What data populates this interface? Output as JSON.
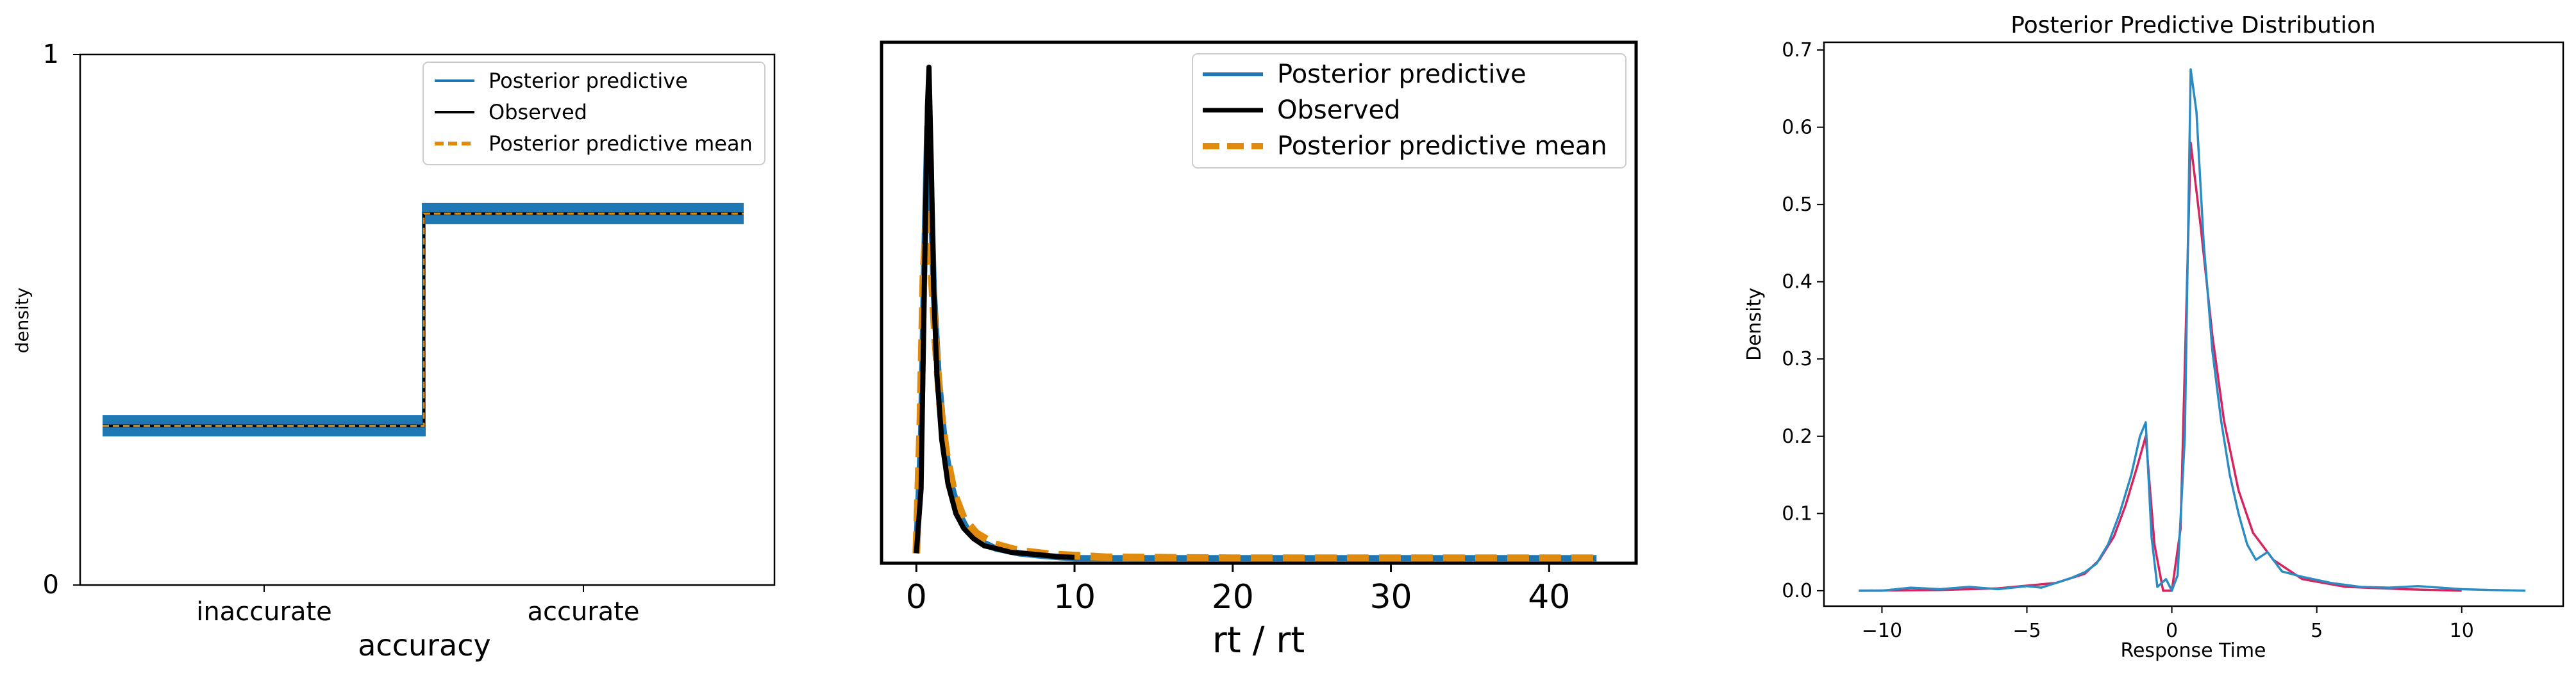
{
  "colors": {
    "blue": "#1f77b4",
    "black": "#000000",
    "orange": "#e08b0e",
    "crimson": "#d6245f",
    "lightblue": "#2b8cc4"
  },
  "chart_data": [
    {
      "type": "line",
      "xlabel": "accuracy",
      "ylabel": "density",
      "yticks": [
        "0",
        "1"
      ],
      "ylim": [
        0,
        1
      ],
      "categories": [
        "inaccurate",
        "accurate"
      ],
      "legend_position": "top-right",
      "legend": [
        "Posterior predictive",
        "Observed",
        "Posterior predictive mean"
      ],
      "series": [
        {
          "name": "Posterior predictive",
          "style": "band",
          "values": [
            0.3,
            0.7
          ],
          "band": [
            [
              0.28,
              0.32
            ],
            [
              0.68,
              0.72
            ]
          ]
        },
        {
          "name": "Observed",
          "values": [
            0.3,
            0.7
          ]
        },
        {
          "name": "Posterior predictive mean",
          "values": [
            0.3,
            0.7
          ]
        }
      ]
    },
    {
      "type": "line",
      "xlabel": "rt / rt",
      "xlim": [
        -2.2,
        45.5
      ],
      "ylim": [
        0,
        1.05
      ],
      "xticks": [
        0,
        10,
        20,
        30,
        40
      ],
      "xtick_labels": [
        "0",
        "10",
        "20",
        "30",
        "40"
      ],
      "legend_position": "top-right",
      "legend": [
        "Posterior predictive",
        "Observed",
        "Posterior predictive mean"
      ],
      "series": [
        {
          "name": "Posterior predictive",
          "x": [
            0.0,
            0.3,
            0.5,
            0.7,
            0.9,
            1.1,
            1.4,
            1.8,
            2.2,
            2.7,
            3.2,
            4.0,
            5.0,
            6.5,
            8.0,
            10.0,
            20.0,
            30.0,
            43.0
          ],
          "y": [
            0.02,
            0.25,
            0.6,
            0.88,
            0.78,
            0.55,
            0.38,
            0.24,
            0.16,
            0.1,
            0.07,
            0.045,
            0.03,
            0.02,
            0.015,
            0.01,
            0.01,
            0.01,
            0.01
          ]
        },
        {
          "name": "Observed",
          "x": [
            0.0,
            0.3,
            0.5,
            0.7,
            0.8,
            0.95,
            1.1,
            1.3,
            1.6,
            2.0,
            2.5,
            3.0,
            3.6,
            4.3,
            5.0,
            6.0,
            7.5,
            9.0,
            10.0
          ],
          "y": [
            0.02,
            0.15,
            0.55,
            0.92,
            1.0,
            0.8,
            0.55,
            0.38,
            0.25,
            0.16,
            0.1,
            0.07,
            0.05,
            0.035,
            0.03,
            0.022,
            0.018,
            0.013,
            0.012
          ]
        },
        {
          "name": "Posterior predictive mean",
          "x": [
            0.0,
            0.25,
            0.45,
            0.7,
            0.9,
            1.2,
            1.5,
            1.9,
            2.4,
            3.0,
            3.8,
            5.0,
            6.5,
            8.5,
            12.0,
            20.0,
            30.0,
            43.0
          ],
          "y": [
            0.02,
            0.28,
            0.58,
            0.72,
            0.62,
            0.45,
            0.32,
            0.22,
            0.14,
            0.09,
            0.06,
            0.038,
            0.025,
            0.018,
            0.012,
            0.01,
            0.01,
            0.01
          ]
        }
      ]
    },
    {
      "type": "line",
      "title": "Posterior Predictive Distribution",
      "xlabel": "Response Time",
      "ylabel": "Density",
      "xlim": [
        -12,
        13.5
      ],
      "ylim": [
        -0.02,
        0.71
      ],
      "xticks": [
        -10,
        -5,
        0,
        5,
        10
      ],
      "xtick_labels": [
        "−10",
        "−5",
        "0",
        "5",
        "10"
      ],
      "yticks": [
        0.0,
        0.1,
        0.2,
        0.3,
        0.4,
        0.5,
        0.6,
        0.7
      ],
      "ytick_labels": [
        "0.0",
        "0.1",
        "0.2",
        "0.3",
        "0.4",
        "0.5",
        "0.6",
        "0.7"
      ],
      "series": [
        {
          "color": "crimson",
          "x": [
            -10.8,
            -8.0,
            -6.0,
            -4.0,
            -3.0,
            -2.5,
            -2.0,
            -1.6,
            -1.2,
            -0.9,
            -0.6,
            -0.3,
            0.0,
            0.3,
            0.65,
            1.0,
            1.4,
            1.8,
            2.3,
            2.8,
            3.5,
            4.5,
            6.0,
            8.0,
            10.0
          ],
          "y": [
            0.0,
            0.001,
            0.003,
            0.01,
            0.022,
            0.04,
            0.07,
            0.11,
            0.16,
            0.2,
            0.06,
            0.0,
            0.0,
            0.08,
            0.58,
            0.47,
            0.33,
            0.22,
            0.13,
            0.075,
            0.04,
            0.015,
            0.005,
            0.002,
            0.0
          ]
        },
        {
          "color": "lightblue",
          "x": [
            -10.8,
            -10.0,
            -9.0,
            -8.0,
            -7.0,
            -6.0,
            -5.0,
            -4.5,
            -4.0,
            -3.5,
            -3.0,
            -2.6,
            -2.2,
            -1.8,
            -1.4,
            -1.1,
            -0.9,
            -0.7,
            -0.5,
            -0.2,
            0.0,
            0.2,
            0.45,
            0.65,
            0.85,
            1.1,
            1.4,
            1.7,
            2.0,
            2.3,
            2.6,
            2.9,
            3.3,
            3.8,
            4.5,
            5.5,
            6.5,
            7.5,
            8.5,
            10.0,
            11.0,
            12.2
          ],
          "y": [
            0.0,
            0.0,
            0.004,
            0.002,
            0.005,
            0.002,
            0.006,
            0.004,
            0.01,
            0.016,
            0.024,
            0.035,
            0.06,
            0.1,
            0.15,
            0.2,
            0.218,
            0.07,
            0.005,
            0.015,
            0.0,
            0.02,
            0.2,
            0.675,
            0.62,
            0.45,
            0.31,
            0.22,
            0.15,
            0.1,
            0.06,
            0.04,
            0.05,
            0.025,
            0.018,
            0.01,
            0.005,
            0.004,
            0.006,
            0.002,
            0.001,
            0.0
          ]
        }
      ]
    }
  ]
}
